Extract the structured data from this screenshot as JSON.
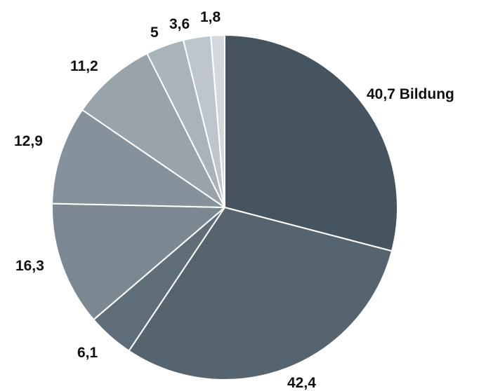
{
  "chart_data": {
    "type": "pie",
    "values": [
      40.7,
      42.4,
      6.1,
      16.3,
      12.9,
      11.2,
      5,
      3.6,
      1.8
    ],
    "value_labels": [
      "40,7",
      "42,4",
      "6,1",
      "16,3",
      "12,9",
      "11,2",
      "5",
      "3,6",
      "1,8"
    ],
    "category_labels": [
      "Bildung",
      "",
      "",
      "",
      "",
      "",
      "",
      "",
      ""
    ],
    "start": "12 o'clock",
    "direction": "clockwise",
    "colors": [
      "#46545f",
      "#56646f",
      "#5f6e79",
      "#7b8892",
      "#86929b",
      "#98a3ab",
      "#a9b3ba",
      "#bcc6cc",
      "#d3d9dd"
    ],
    "slice_border": "#ffffff"
  }
}
